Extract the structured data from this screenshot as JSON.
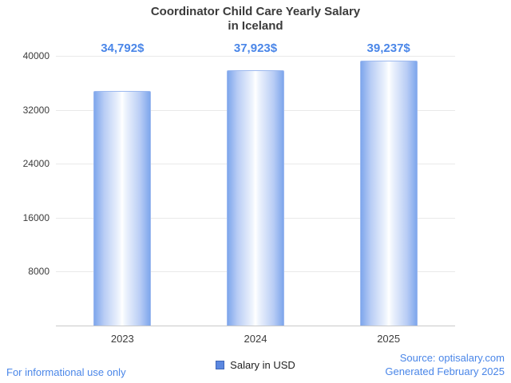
{
  "title": {
    "line1": "Coordinator Child Care Yearly Salary",
    "line2": "in Iceland"
  },
  "chart_data": {
    "type": "bar",
    "title": "Coordinator Child Care Yearly Salary in Iceland",
    "categories": [
      "2023",
      "2024",
      "2025"
    ],
    "values": [
      34792,
      37923,
      39237
    ],
    "value_labels": [
      "34,792$",
      "37,923$",
      "39,237$"
    ],
    "series_name": "Salary in USD",
    "xlabel": "",
    "ylabel": "",
    "ylim": [
      0,
      40000
    ],
    "yticks": [
      8000,
      16000,
      24000,
      32000,
      40000
    ],
    "grid": true,
    "legend_position": "bottom"
  },
  "legend": {
    "label": "Salary in USD",
    "color": "#5b87e0"
  },
  "footer": {
    "left": "For informational use only",
    "source": "Source: optisalary.com",
    "generated": "Generated February 2025"
  },
  "colors": {
    "accent": "#4a86e8",
    "bar_edge": "#7ea6ec",
    "bar_border": "#9db9ef",
    "grid": "#e9e9e9",
    "axis": "#c9c9c9",
    "text": "#3b3b3b"
  }
}
